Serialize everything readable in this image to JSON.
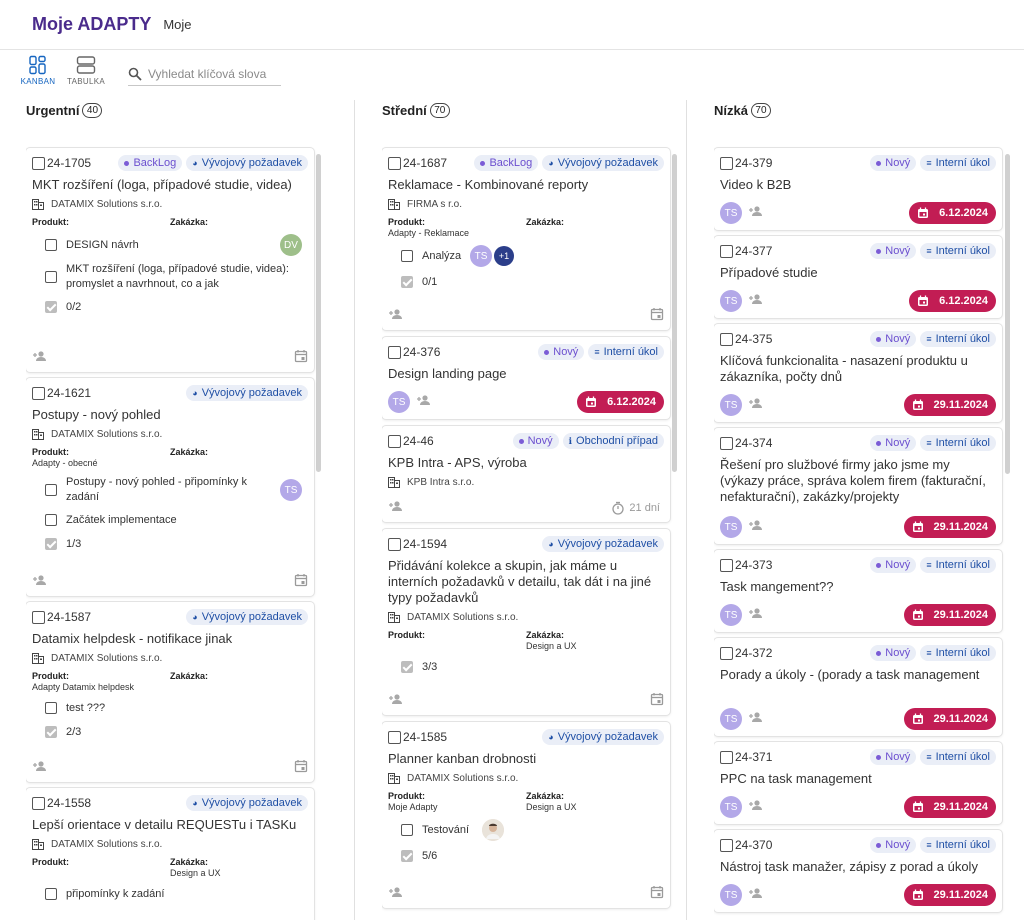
{
  "app": {
    "title": "Moje ADAPTY",
    "subtitle": "Moje"
  },
  "toolbar": {
    "kanban_label": "KANBAN",
    "table_label": "TABULKA",
    "search_placeholder": "Vyhledat klíčová slova",
    "search_value": ""
  },
  "colors": {
    "accent": "#4a2b8c",
    "date_chip": "#c21d54",
    "chip_bg": "#eaeef7",
    "avatar": "#b3a8e8"
  },
  "labels": {
    "produkt": "Produkt:",
    "zakazka": "Zakázka:"
  },
  "columns": [
    {
      "title": "Urgentní",
      "count": "40",
      "cards": [
        {
          "id": "24-1705",
          "status": "BackLog",
          "type": "Vývojový požadavek",
          "title": "MKT rozšíření (loga, případové studie, videa)",
          "company": "DATAMIX Solutions s.r.o.",
          "produkt": "",
          "zakazka": "",
          "tasks": [
            {
              "text": "DESIGN návrh",
              "avatar": "DV"
            },
            {
              "text": "MKT rozšíření (loga, případové studie, videa): promyslet a navrhnout, co a jak"
            }
          ],
          "progress": "0/2"
        },
        {
          "id": "24-1621",
          "status": "",
          "type": "Vývojový požadavek",
          "title": "Postupy - nový pohled",
          "company": "DATAMIX Solutions s.r.o.",
          "produkt": "Adapty - obecné",
          "zakazka": "",
          "tasks": [
            {
              "text": "Postupy - nový pohled - připomínky k zadání",
              "avatar": "TS"
            },
            {
              "text": "Začátek implementace"
            }
          ],
          "progress": "1/3"
        },
        {
          "id": "24-1587",
          "status": "",
          "type": "Vývojový požadavek",
          "title": "Datamix helpdesk - notifikace jinak",
          "company": "DATAMIX Solutions s.r.o.",
          "produkt": "Adapty Datamix helpdesk",
          "zakazka": "",
          "tasks": [
            {
              "text": "test ???"
            }
          ],
          "progress": "2/3"
        },
        {
          "id": "24-1558",
          "status": "",
          "type": "Vývojový požadavek",
          "title": "Lepší orientace v detailu REQUESTu i TASKu",
          "company": "DATAMIX Solutions s.r.o.",
          "produkt": "",
          "zakazka": "Design a UX",
          "tasks": [
            {
              "text": "připomínky k zadání"
            }
          ],
          "progress": ""
        }
      ]
    },
    {
      "title": "Střední",
      "count": "70",
      "cards": [
        {
          "id": "24-1687",
          "status": "BackLog",
          "type": "Vývojový požadavek",
          "title": "Reklamace - Kombinované reporty",
          "company": "FIRMA s r.o.",
          "produkt": "Adapty - Reklamace",
          "zakazka": "",
          "tasks": [
            {
              "text": "Analýza",
              "avatar": "TS",
              "extra": "+1"
            }
          ],
          "progress": "0/1"
        },
        {
          "id": "24-376",
          "status": "Nový",
          "type": "Interní úkol",
          "title": "Design landing page",
          "avatar": "TS",
          "date": "6.12.2024"
        },
        {
          "id": "24-46",
          "status": "Nový",
          "type": "Obchodní případ",
          "title": "KPB Intra - APS, výroba",
          "company": "KPB Intra s.r.o.",
          "timer": "21 dní"
        },
        {
          "id": "24-1594",
          "status": "",
          "type": "Vývojový požadavek",
          "title": "Přidávání kolekce a skupin, jak máme u interních požadavků v detailu, tak dát i na jiné typy požadavků",
          "company": "DATAMIX Solutions s.r.o.",
          "produkt": "",
          "zakazka": "Design a UX",
          "tasks": [],
          "progress": "3/3"
        },
        {
          "id": "24-1585",
          "status": "",
          "type": "Vývojový požadavek",
          "title": "Planner kanban drobnosti",
          "company": "DATAMIX Solutions s.r.o.",
          "produkt": "Moje Adapty",
          "zakazka": "Design a UX",
          "tasks": [
            {
              "text": "Testování",
              "photo": true
            }
          ],
          "progress": "5/6"
        }
      ]
    },
    {
      "title": "Nízká",
      "count": "70",
      "cards": [
        {
          "id": "24-379",
          "status": "Nový",
          "type": "Interní úkol",
          "title": "Video k B2B",
          "avatar": "TS",
          "date": "6.12.2024"
        },
        {
          "id": "24-377",
          "status": "Nový",
          "type": "Interní úkol",
          "title": "Případové studie",
          "avatar": "TS",
          "date": "6.12.2024"
        },
        {
          "id": "24-375",
          "status": "Nový",
          "type": "Interní úkol",
          "title": "Klíčová funkcionalita - nasazení produktu u zákazníka, počty dnů",
          "avatar": "TS",
          "date": "29.11.2024"
        },
        {
          "id": "24-374",
          "status": "Nový",
          "type": "Interní úkol",
          "title": "Řešení pro službové firmy jako jsme my (výkazy práce, správa kolem firem (fakturační, nefakturační), zakázky/projekty",
          "avatar": "TS",
          "date": "29.11.2024"
        },
        {
          "id": "24-373",
          "status": "Nový",
          "type": "Interní úkol",
          "title": "Task mangement??",
          "avatar": "TS",
          "date": "29.11.2024"
        },
        {
          "id": "24-372",
          "status": "Nový",
          "type": "Interní úkol",
          "title": "Porady a úkoly -  (porady a task management",
          "avatar": "TS",
          "date": "29.11.2024"
        },
        {
          "id": "24-371",
          "status": "Nový",
          "type": "Interní úkol",
          "title": "PPC na task management",
          "avatar": "TS",
          "date": "29.11.2024"
        },
        {
          "id": "24-370",
          "status": "Nový",
          "type": "Interní úkol",
          "title": "Nástroj task manažer, zápisy z porad a úkoly",
          "avatar": "TS",
          "date": "29.11.2024"
        }
      ]
    }
  ]
}
